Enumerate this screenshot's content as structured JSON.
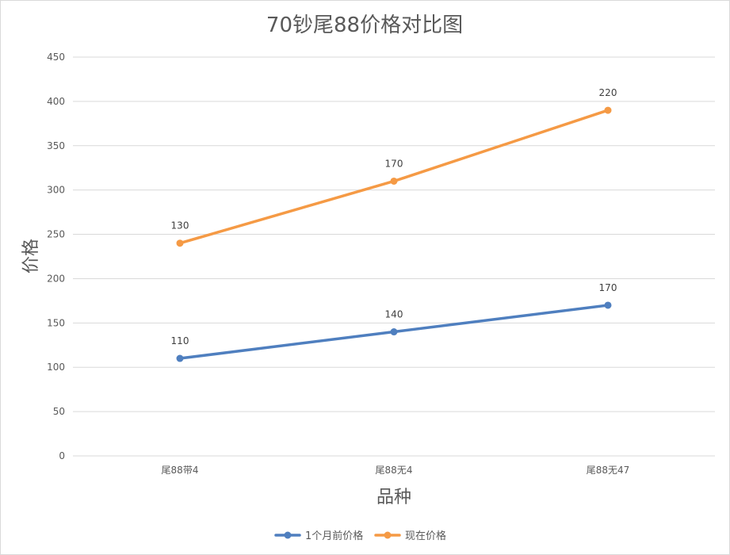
{
  "chart_data": {
    "type": "line",
    "title": "70钞尾88价格对比图",
    "xlabel": "品种",
    "ylabel": "价格",
    "categories": [
      "尾88带4",
      "尾88无4",
      "尾88无47"
    ],
    "ylim": [
      0,
      450
    ],
    "yticks": [
      0,
      50,
      100,
      150,
      200,
      250,
      300,
      350,
      400,
      450
    ],
    "grid": true,
    "legend_position": "bottom",
    "series": [
      {
        "name": "1个月前价格",
        "color": "#4f7fbf",
        "values": [
          110,
          140,
          170
        ],
        "labels": [
          "110",
          "140",
          "170"
        ]
      },
      {
        "name": "现在价格",
        "color": "#f59a45",
        "values": [
          240,
          310,
          390
        ],
        "labels": [
          "130",
          "170",
          "220"
        ]
      }
    ]
  }
}
